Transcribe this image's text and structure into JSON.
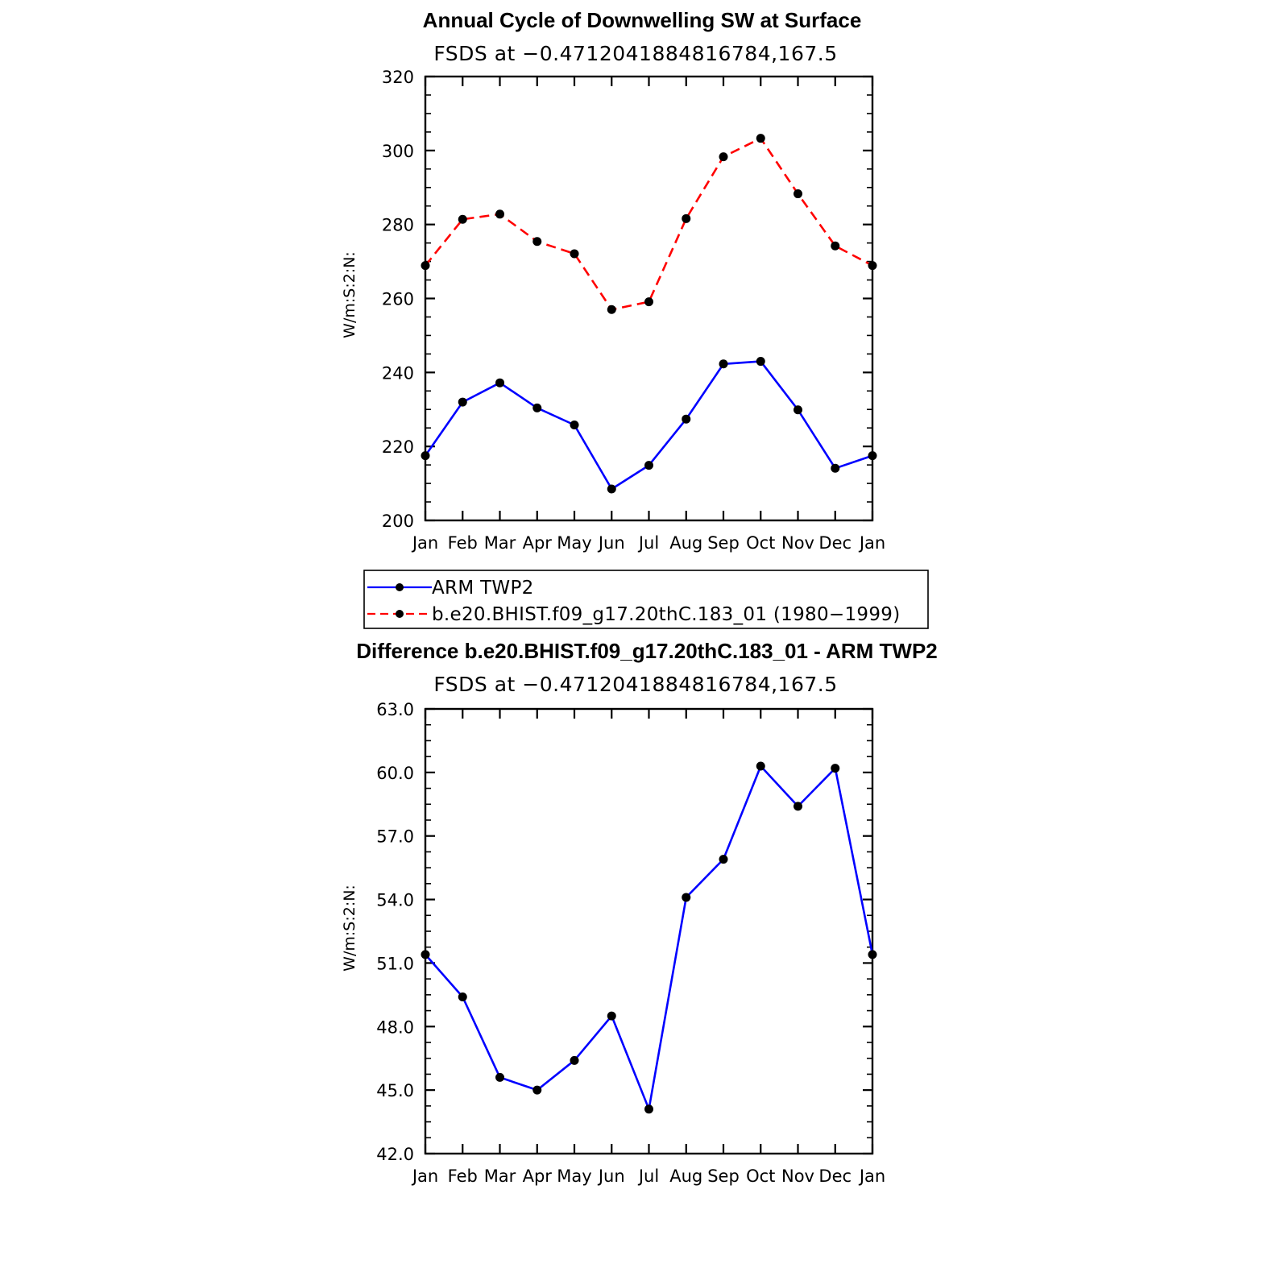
{
  "chart_data": [
    {
      "type": "line",
      "title": "Annual Cycle of Downwelling SW at Surface",
      "subtitle": "FSDS at −0.4712041884816784,167.5",
      "ylabel": "W/m:S:2:N:",
      "xlabel": "",
      "categories": [
        "Jan",
        "Feb",
        "Mar",
        "Apr",
        "May",
        "Jun",
        "Jul",
        "Aug",
        "Sep",
        "Oct",
        "Nov",
        "Dec",
        "Jan"
      ],
      "ylim": [
        200,
        320
      ],
      "yticks": [
        "200",
        "220",
        "240",
        "260",
        "280",
        "300",
        "320"
      ],
      "series": [
        {
          "name": "ARM TWP2",
          "color": "#0000ff",
          "dash": "solid",
          "values": [
            217.5,
            232.0,
            237.2,
            230.4,
            225.8,
            208.5,
            214.9,
            227.4,
            242.3,
            243.0,
            229.9,
            214.1,
            217.5
          ]
        },
        {
          "name": "b.e20.BHIST.f09_g17.20thC.183_01 (1980−1999)",
          "color": "#ff0000",
          "dash": "dashed",
          "values": [
            268.9,
            281.4,
            282.8,
            275.4,
            272.1,
            257.0,
            259.1,
            281.6,
            298.3,
            303.3,
            288.3,
            274.2,
            268.9
          ]
        }
      ],
      "legend": "below"
    },
    {
      "type": "line",
      "title": "Difference b.e20.BHIST.f09_g17.20thC.183_01 - ARM TWP2",
      "subtitle": "FSDS at −0.4712041884816784,167.5",
      "ylabel": "W/m:S:2:N:",
      "xlabel": "",
      "categories": [
        "Jan",
        "Feb",
        "Mar",
        "Apr",
        "May",
        "Jun",
        "Jul",
        "Aug",
        "Sep",
        "Oct",
        "Nov",
        "Dec",
        "Jan"
      ],
      "ylim": [
        42.0,
        63.0
      ],
      "yticks": [
        "42.0",
        "45.0",
        "48.0",
        "51.0",
        "54.0",
        "57.0",
        "60.0",
        "63.0"
      ],
      "series": [
        {
          "color": "#0000ff",
          "dash": "solid",
          "values": [
            51.4,
            49.4,
            45.6,
            45.0,
            46.4,
            48.5,
            44.1,
            54.1,
            55.9,
            60.3,
            58.4,
            60.2,
            51.4
          ]
        }
      ]
    }
  ]
}
